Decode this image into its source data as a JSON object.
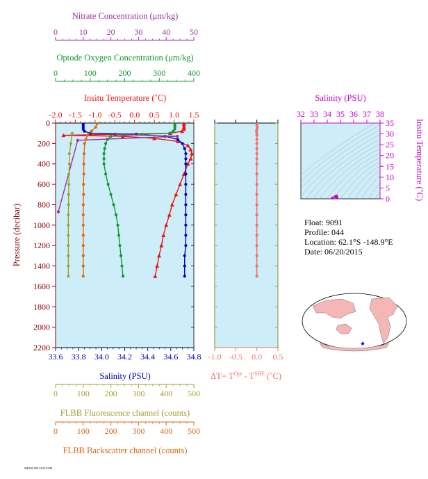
{
  "colors": {
    "nitrate": "#9b2fa0",
    "oxygen": "#119933",
    "temperature": "#ee1111",
    "salinity": "#0000bb",
    "fluorescence": "#a0a030",
    "backscatter": "#dd6611",
    "at": "#f07070",
    "ts_axis": "#cc00cc",
    "panel_bg": "#cdeef8"
  },
  "info": {
    "float": "Float:  9091",
    "profile": "Profile:  044",
    "location": "Location:  62.1°S  -148.9°E",
    "date": "Date:  06/20/2015"
  },
  "footer_text": "MBARI 9091 SOCCOM",
  "chart_data": [
    {
      "type": "line",
      "panel": "profile",
      "ylabel": "Pressure (decibar)",
      "ylim": [
        2200,
        0
      ],
      "yticks": [
        0,
        200,
        400,
        600,
        800,
        1000,
        1200,
        1400,
        1600,
        1800,
        2000,
        2200
      ],
      "axes": [
        {
          "key": "nitrate",
          "label": "Nitrate Concentration (μm/kg)",
          "position": "top-1",
          "lim": [
            0,
            50
          ],
          "ticks": [
            "0",
            "10",
            "20",
            "30",
            "40",
            "50"
          ]
        },
        {
          "key": "oxygen",
          "label": "Optode Oxygen Concentration (μm/kg)",
          "position": "top-2",
          "lim": [
            0,
            400
          ],
          "ticks": [
            "0",
            "100",
            "200",
            "300",
            "400"
          ]
        },
        {
          "key": "temperature",
          "label": "Insitu Temperature (˚C)",
          "position": "top-3",
          "lim": [
            -2.0,
            1.5
          ],
          "ticks": [
            "-2.0",
            "-1.5",
            "-1.0",
            "-0.5",
            "0.0",
            "0.5",
            "1.0",
            "1.5"
          ]
        },
        {
          "key": "salinity",
          "label": "Salinity (PSU)",
          "position": "bottom-1",
          "lim": [
            33.6,
            34.8
          ],
          "ticks": [
            "33.6",
            "33.8",
            "34.0",
            "34.2",
            "34.4",
            "34.6",
            "34.8"
          ]
        },
        {
          "key": "fluorescence",
          "label": "FLBB Fluorescence channel (counts)",
          "position": "bottom-2",
          "lim": [
            0,
            500
          ],
          "ticks": [
            "0",
            "100",
            "200",
            "300",
            "400",
            "500"
          ]
        },
        {
          "key": "backscatter",
          "label": "FLBB Backscatter channel (counts)",
          "position": "bottom-3",
          "lim": [
            0,
            500
          ],
          "ticks": [
            "0",
            "100",
            "200",
            "300",
            "400",
            "500"
          ]
        }
      ],
      "series": [
        {
          "key": "temperature",
          "marker": "triangle",
          "points": [
            [
              1.25,
              5
            ],
            [
              1.25,
              20
            ],
            [
              1.25,
              40
            ],
            [
              1.25,
              60
            ],
            [
              1.2,
              80
            ],
            [
              0.9,
              100
            ],
            [
              -0.5,
              110
            ],
            [
              -1.8,
              120
            ],
            [
              -0.3,
              130
            ],
            [
              0.5,
              150
            ],
            [
              1.1,
              180
            ],
            [
              1.35,
              220
            ],
            [
              1.42,
              260
            ],
            [
              1.45,
              300
            ],
            [
              1.42,
              350
            ],
            [
              1.35,
              400
            ],
            [
              1.25,
              500
            ],
            [
              1.15,
              600
            ],
            [
              1.05,
              700
            ],
            [
              0.95,
              800
            ],
            [
              0.88,
              900
            ],
            [
              0.8,
              1000
            ],
            [
              0.73,
              1100
            ],
            [
              0.68,
              1200
            ],
            [
              0.62,
              1300
            ],
            [
              0.57,
              1400
            ],
            [
              0.52,
              1500
            ]
          ]
        },
        {
          "key": "salinity",
          "marker": "circle",
          "points": [
            [
              33.84,
              5
            ],
            [
              33.84,
              20
            ],
            [
              33.84,
              40
            ],
            [
              33.84,
              60
            ],
            [
              33.85,
              80
            ],
            [
              33.9,
              100
            ],
            [
              34.3,
              110
            ],
            [
              34.55,
              130
            ],
            [
              34.66,
              160
            ],
            [
              34.7,
              200
            ],
            [
              34.72,
              250
            ],
            [
              34.73,
              300
            ],
            [
              34.73,
              350
            ],
            [
              34.73,
              400
            ],
            [
              34.73,
              500
            ],
            [
              34.73,
              600
            ],
            [
              34.73,
              700
            ],
            [
              34.73,
              800
            ],
            [
              34.73,
              900
            ],
            [
              34.73,
              1000
            ],
            [
              34.73,
              1100
            ],
            [
              34.73,
              1200
            ],
            [
              34.72,
              1300
            ],
            [
              34.72,
              1400
            ],
            [
              34.72,
              1500
            ]
          ]
        },
        {
          "key": "oxygen",
          "marker": "circle",
          "points": [
            [
              345,
              5
            ],
            [
              345,
              20
            ],
            [
              345,
              40
            ],
            [
              345,
              60
            ],
            [
              340,
              80
            ],
            [
              330,
              100
            ],
            [
              250,
              110
            ],
            [
              160,
              130
            ],
            [
              150,
              160
            ],
            [
              145,
              200
            ],
            [
              142,
              250
            ],
            [
              140,
              300
            ],
            [
              140,
              350
            ],
            [
              140,
              400
            ],
            [
              145,
              500
            ],
            [
              152,
              600
            ],
            [
              160,
              700
            ],
            [
              168,
              800
            ],
            [
              175,
              900
            ],
            [
              180,
              1000
            ],
            [
              183,
              1100
            ],
            [
              186,
              1200
            ],
            [
              189,
              1300
            ],
            [
              192,
              1400
            ],
            [
              195,
              1500
            ]
          ]
        },
        {
          "key": "nitrate",
          "marker": "circle",
          "points": [
            [
              22,
              110
            ],
            [
              44,
              130
            ],
            [
              8,
              169
            ],
            [
              1,
              870
            ]
          ]
        },
        {
          "key": "fluorescence",
          "marker": "circle",
          "points": [
            [
              60,
              100
            ],
            [
              55,
              200
            ],
            [
              50,
              300
            ],
            [
              50,
              400
            ],
            [
              48,
              500
            ],
            [
              48,
              600
            ],
            [
              47,
              700
            ],
            [
              47,
              800
            ],
            [
              46,
              900
            ],
            [
              46,
              1000
            ],
            [
              46,
              1100
            ],
            [
              46,
              1200
            ],
            [
              46,
              1300
            ],
            [
              46,
              1400
            ],
            [
              46,
              1500
            ]
          ]
        },
        {
          "key": "backscatter",
          "marker": "circle",
          "points": [
            [
              150,
              5
            ],
            [
              145,
              40
            ],
            [
              130,
              80
            ],
            [
              115,
              120
            ],
            [
              110,
              160
            ],
            [
              105,
              200
            ],
            [
              103,
              300
            ],
            [
              102,
              400
            ],
            [
              102,
              500
            ],
            [
              101,
              600
            ],
            [
              101,
              700
            ],
            [
              100,
              800
            ],
            [
              100,
              900
            ],
            [
              100,
              1000
            ],
            [
              100,
              1100
            ],
            [
              100,
              1200
            ],
            [
              100,
              1300
            ],
            [
              100,
              1400
            ],
            [
              100,
              1500
            ]
          ]
        }
      ]
    },
    {
      "type": "line",
      "panel": "at",
      "xlabel": "ΔT= T",
      "xlabel_sup1": "Opt",
      "xlabel_mid": " - T",
      "xlabel_sup2": "SBE",
      "xlabel_end": " (˚C)",
      "xlim": [
        -1.0,
        0.5
      ],
      "ylim": [
        2200,
        0
      ],
      "xticks": [
        "-1.0",
        "-0.5",
        "0.0",
        "0.5"
      ],
      "series": [
        {
          "key": "at",
          "marker": "circle",
          "points": [
            [
              0.0,
              5
            ],
            [
              0.0,
              20
            ],
            [
              0.01,
              40
            ],
            [
              0.0,
              60
            ],
            [
              -0.01,
              80
            ],
            [
              0.0,
              100
            ],
            [
              0.0,
              120
            ],
            [
              0.0,
              160
            ],
            [
              0.0,
              200
            ],
            [
              0.0,
              250
            ],
            [
              0.0,
              300
            ],
            [
              0.0,
              350
            ],
            [
              0.0,
              400
            ],
            [
              0.0,
              500
            ],
            [
              0.0,
              600
            ],
            [
              0.0,
              700
            ],
            [
              0.0,
              800
            ],
            [
              0.0,
              900
            ],
            [
              0.0,
              1000
            ],
            [
              0.0,
              1100
            ],
            [
              0.0,
              1200
            ],
            [
              0.0,
              1300
            ],
            [
              0.0,
              1400
            ],
            [
              0.0,
              1500
            ]
          ]
        }
      ]
    },
    {
      "type": "scatter",
      "panel": "ts",
      "xlabel": "Salinity (PSU)",
      "ylabel": "Insitu Temperature (˚C)",
      "xlim": [
        32,
        38
      ],
      "ylim": [
        0,
        35
      ],
      "xticks": [
        "32",
        "33",
        "34",
        "35",
        "36",
        "37",
        "38"
      ],
      "yticks": [
        "0",
        "5",
        "10",
        "15",
        "20",
        "25",
        "30",
        "35"
      ],
      "points": [
        [
          34.4,
          0.4
        ],
        [
          34.6,
          1.0
        ],
        [
          34.7,
          1.3
        ],
        [
          34.72,
          0.8
        ],
        [
          34.73,
          0.6
        ]
      ]
    }
  ]
}
